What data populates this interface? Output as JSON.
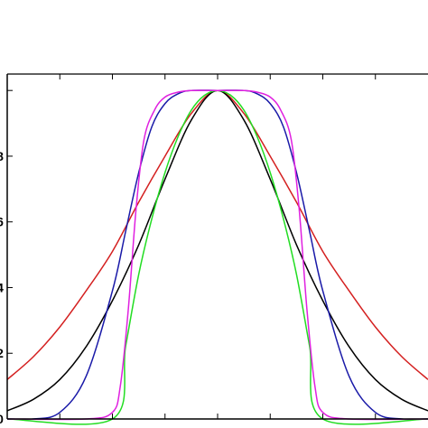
{
  "chart_data": {
    "type": "line",
    "title": "",
    "xlabel": "",
    "ylabel": "",
    "xlim": [
      -4,
      4
    ],
    "ylim": [
      0,
      1.05
    ],
    "grid": false,
    "legend": "none",
    "x_ticks": [
      -3,
      -2,
      -1,
      0,
      1,
      2,
      3
    ],
    "y_ticks": [
      0,
      0.2,
      0.4,
      0.6,
      0.8,
      1.0
    ],
    "y_tick_labels": [
      "0",
      "2",
      "4",
      "6",
      "8",
      ""
    ],
    "series": [
      {
        "color": "#d42020",
        "x": [
          -4.0,
          -3.5,
          -3.0,
          -2.5,
          -2.0,
          -1.5,
          -1.0,
          -0.5,
          0.0,
          0.5,
          1.0,
          1.5,
          2.0,
          2.5,
          3.0,
          3.5,
          4.0
        ],
        "y": [
          0.12,
          0.19,
          0.28,
          0.39,
          0.51,
          0.66,
          0.8,
          0.93,
          1.0,
          0.93,
          0.8,
          0.66,
          0.51,
          0.39,
          0.28,
          0.19,
          0.12
        ]
      },
      {
        "color": "#000000",
        "x": [
          -4.0,
          -3.5,
          -3.0,
          -2.5,
          -2.0,
          -1.5,
          -1.0,
          -0.5,
          0.0,
          0.5,
          1.0,
          1.5,
          2.0,
          2.5,
          3.0,
          3.5,
          4.0
        ],
        "y": [
          0.025,
          0.06,
          0.12,
          0.22,
          0.36,
          0.53,
          0.73,
          0.91,
          1.0,
          0.91,
          0.73,
          0.53,
          0.36,
          0.22,
          0.12,
          0.06,
          0.025
        ]
      },
      {
        "color": "#1a1aa8",
        "x": [
          -4.0,
          -3.5,
          -3.0,
          -2.5,
          -2.0,
          -1.75,
          -1.5,
          -1.25,
          -1.0,
          -0.75,
          -0.5,
          0.0,
          0.5,
          0.75,
          1.0,
          1.25,
          1.5,
          1.75,
          2.0,
          2.5,
          3.0,
          3.5,
          4.0
        ],
        "y": [
          0.0,
          0.0,
          0.02,
          0.13,
          0.39,
          0.57,
          0.75,
          0.89,
          0.96,
          0.99,
          1.0,
          1.0,
          1.0,
          0.99,
          0.96,
          0.89,
          0.75,
          0.57,
          0.39,
          0.13,
          0.02,
          0.0,
          0.0
        ]
      },
      {
        "color": "#22dd22",
        "x": [
          -4.0,
          -2.0,
          -1.75,
          -1.5,
          -1.25,
          -1.0,
          -0.75,
          -0.5,
          -0.25,
          0.0,
          0.25,
          0.5,
          0.75,
          1.0,
          1.25,
          1.5,
          1.75,
          2.0,
          4.0
        ],
        "y": [
          0.0,
          0.0,
          0.22,
          0.44,
          0.61,
          0.75,
          0.86,
          0.94,
          0.985,
          1.0,
          0.985,
          0.94,
          0.86,
          0.75,
          0.61,
          0.44,
          0.22,
          0.0,
          0.0
        ]
      },
      {
        "color": "#e020e0",
        "x": [
          -4.0,
          -2.5,
          -2.0,
          -1.85,
          -1.7,
          -1.55,
          -1.4,
          -1.2,
          -1.0,
          -0.75,
          -0.5,
          0.0,
          0.5,
          0.75,
          1.0,
          1.2,
          1.4,
          1.55,
          1.7,
          1.85,
          2.0,
          2.5,
          4.0
        ],
        "y": [
          0.0,
          0.0,
          0.02,
          0.1,
          0.33,
          0.64,
          0.85,
          0.94,
          0.98,
          0.995,
          1.0,
          1.0,
          1.0,
          0.995,
          0.98,
          0.94,
          0.85,
          0.64,
          0.33,
          0.1,
          0.02,
          0.0,
          0.0
        ]
      }
    ]
  }
}
